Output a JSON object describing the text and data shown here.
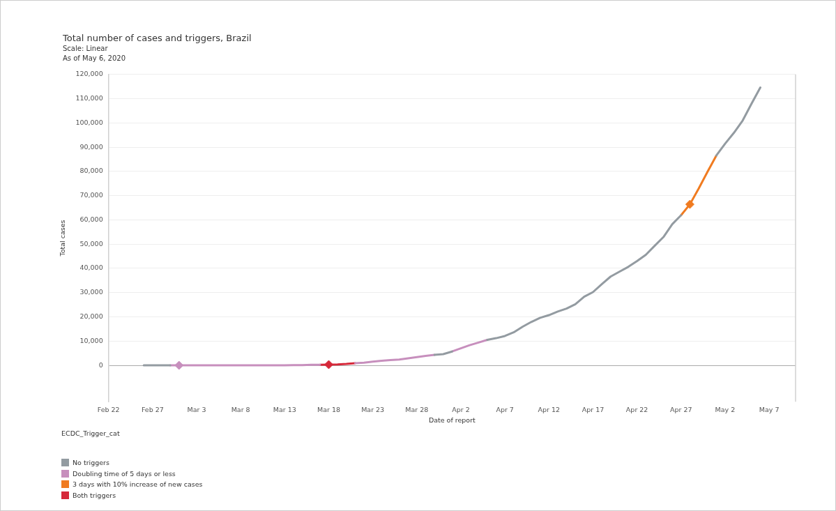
{
  "chart_data": {
    "type": "line",
    "title": "Total number of cases and triggers, Brazil",
    "subtitle": "Scale: Linear",
    "annotations": [
      "As of May 6, 2020"
    ],
    "xlabel": "Date of report",
    "ylabel": "Total cases",
    "legend_title": "ECDC_Trigger_cat",
    "x": [
      "2020-02-26",
      "2020-02-27",
      "2020-02-28",
      "2020-02-29",
      "2020-03-01",
      "2020-03-02",
      "2020-03-03",
      "2020-03-04",
      "2020-03-05",
      "2020-03-06",
      "2020-03-07",
      "2020-03-08",
      "2020-03-09",
      "2020-03-10",
      "2020-03-11",
      "2020-03-12",
      "2020-03-13",
      "2020-03-14",
      "2020-03-15",
      "2020-03-16",
      "2020-03-17",
      "2020-03-18",
      "2020-03-19",
      "2020-03-20",
      "2020-03-21",
      "2020-03-22",
      "2020-03-23",
      "2020-03-24",
      "2020-03-25",
      "2020-03-26",
      "2020-03-27",
      "2020-03-28",
      "2020-03-29",
      "2020-03-30",
      "2020-03-31",
      "2020-04-01",
      "2020-04-02",
      "2020-04-03",
      "2020-04-04",
      "2020-04-05",
      "2020-04-06",
      "2020-04-07",
      "2020-04-08",
      "2020-04-09",
      "2020-04-10",
      "2020-04-11",
      "2020-04-12",
      "2020-04-13",
      "2020-04-14",
      "2020-04-15",
      "2020-04-16",
      "2020-04-17",
      "2020-04-18",
      "2020-04-19",
      "2020-04-20",
      "2020-04-21",
      "2020-04-22",
      "2020-04-23",
      "2020-04-24",
      "2020-04-25",
      "2020-04-26",
      "2020-04-27",
      "2020-04-28",
      "2020-04-29",
      "2020-04-30",
      "2020-05-01",
      "2020-05-02",
      "2020-05-03",
      "2020-05-04",
      "2020-05-05",
      "2020-05-06"
    ],
    "series": [
      {
        "name": "No triggers",
        "color": "#939ba1",
        "values": [
          0,
          0,
          0,
          0,
          null,
          null,
          null,
          null,
          null,
          null,
          null,
          null,
          null,
          null,
          null,
          null,
          null,
          null,
          null,
          null,
          null,
          null,
          null,
          null,
          null,
          null,
          null,
          null,
          null,
          null,
          null,
          null,
          null,
          4300,
          4600,
          5700,
          null,
          null,
          null,
          10500,
          11200,
          12100,
          13600,
          15900,
          17900,
          19600,
          20700,
          22200,
          23400,
          25200,
          28300,
          30200,
          33500,
          36600,
          38600,
          40600,
          43000,
          45600,
          49300,
          52900,
          58200,
          61900,
          null,
          null,
          null,
          86500,
          91400,
          95900,
          101000,
          107900,
          114600
        ]
      },
      {
        "name": "Doubling time of 5 days or less",
        "color": "#c78fbd",
        "values": [
          null,
          null,
          null,
          0,
          0,
          0,
          0,
          0,
          0,
          0,
          0,
          0,
          0,
          0,
          0,
          0,
          0,
          100,
          100,
          200,
          200,
          null,
          null,
          null,
          900,
          1100,
          1500,
          1900,
          2200,
          2400,
          2900,
          3400,
          3900,
          4300,
          null,
          5700,
          7000,
          8300,
          9400,
          10500,
          null,
          null,
          null,
          null,
          null,
          null,
          null,
          null,
          null,
          null,
          null,
          null,
          null,
          null,
          null,
          null,
          null,
          null,
          null,
          null,
          null,
          null,
          null,
          null,
          null,
          null,
          null,
          null,
          null,
          null,
          null
        ]
      },
      {
        "name": "3 days with 10% increase of new cases",
        "color": "#f07b20",
        "values": [
          null,
          null,
          null,
          null,
          null,
          null,
          null,
          null,
          null,
          null,
          null,
          null,
          null,
          null,
          null,
          null,
          null,
          null,
          null,
          null,
          null,
          null,
          null,
          null,
          null,
          null,
          null,
          null,
          null,
          null,
          null,
          null,
          null,
          null,
          null,
          null,
          null,
          null,
          null,
          null,
          null,
          null,
          null,
          null,
          null,
          null,
          null,
          null,
          null,
          null,
          null,
          null,
          null,
          null,
          null,
          null,
          null,
          null,
          null,
          null,
          null,
          61900,
          66400,
          72900,
          79800,
          86500,
          null,
          null,
          null,
          null,
          null
        ]
      },
      {
        "name": "Both triggers",
        "color": "#d62839",
        "values": [
          null,
          null,
          null,
          null,
          null,
          null,
          null,
          null,
          null,
          null,
          null,
          null,
          null,
          null,
          null,
          null,
          null,
          null,
          null,
          null,
          200,
          300,
          400,
          600,
          900,
          null,
          null,
          null,
          null,
          null,
          null,
          null,
          null,
          null,
          null,
          null,
          null,
          null,
          null,
          null,
          null,
          null,
          null,
          null,
          null,
          null,
          null,
          null,
          null,
          null,
          null,
          null,
          null,
          null,
          null,
          null,
          null,
          null,
          null,
          null,
          null,
          null,
          null,
          null,
          null,
          null,
          null,
          null,
          null,
          null,
          null
        ]
      },
      {
        "type": "scatter",
        "marker": "diamond",
        "x": [
          "2020-03-01",
          "2020-03-18",
          "2020-04-28"
        ],
        "colors": [
          "#c78fbd",
          "#d62839",
          "#f07b20"
        ],
        "values": [
          0,
          300,
          66400
        ]
      }
    ],
    "xlim": [
      "2020-02-22",
      "2020-05-10"
    ],
    "xticks": [
      {
        "value": "2020-02-22",
        "label": "Feb 22"
      },
      {
        "value": "2020-02-27",
        "label": "Feb 27"
      },
      {
        "value": "2020-03-03",
        "label": "Mar 3"
      },
      {
        "value": "2020-03-08",
        "label": "Mar 8"
      },
      {
        "value": "2020-03-13",
        "label": "Mar 13"
      },
      {
        "value": "2020-03-18",
        "label": "Mar 18"
      },
      {
        "value": "2020-03-23",
        "label": "Mar 23"
      },
      {
        "value": "2020-03-28",
        "label": "Mar 28"
      },
      {
        "value": "2020-04-02",
        "label": "Apr 2"
      },
      {
        "value": "2020-04-07",
        "label": "Apr 7"
      },
      {
        "value": "2020-04-12",
        "label": "Apr 12"
      },
      {
        "value": "2020-04-17",
        "label": "Apr 17"
      },
      {
        "value": "2020-04-22",
        "label": "Apr 22"
      },
      {
        "value": "2020-04-27",
        "label": "Apr 27"
      },
      {
        "value": "2020-05-02",
        "label": "May 2"
      },
      {
        "value": "2020-05-07",
        "label": "May 7"
      }
    ],
    "ylim": [
      -15000,
      120000
    ],
    "yticks": [
      0,
      {
        "value": 10000,
        "label": "10,000"
      },
      {
        "value": 20000,
        "label": "20,000"
      },
      {
        "value": 30000,
        "label": "30,000"
      },
      {
        "value": 40000,
        "label": "40,000"
      },
      {
        "value": 50000,
        "label": "50,000"
      },
      {
        "value": 60000,
        "label": "60,000"
      },
      {
        "value": 70000,
        "label": "70,000"
      },
      {
        "value": 80000,
        "label": "80,000"
      },
      {
        "value": 90000,
        "label": "90,000"
      },
      {
        "value": 100000,
        "label": "100,000"
      },
      {
        "value": 110000,
        "label": "110,000"
      },
      {
        "value": 120000,
        "label": "120,000"
      }
    ],
    "grid": "y",
    "legend": "bottom left",
    "marker": "none",
    "line_style": "solid"
  }
}
